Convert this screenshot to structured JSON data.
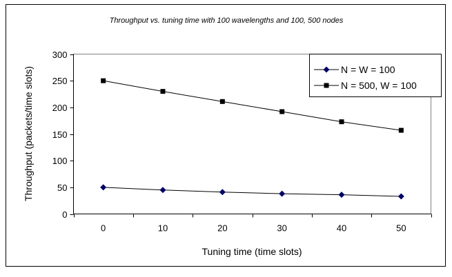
{
  "chart_data": {
    "type": "line",
    "title": "Throughput vs. tuning time with 100 wavelengths and 100, 500 nodes",
    "xlabel": "Tuning time (time slots)",
    "ylabel": "Throughput (packets/time slots)",
    "x": [
      0,
      10,
      20,
      30,
      40,
      50
    ],
    "ylim": [
      0,
      300
    ],
    "yticks": [
      0,
      50,
      100,
      150,
      200,
      250,
      300
    ],
    "grid": false,
    "legend_position": "top-right",
    "series": [
      {
        "name": "N = W = 100",
        "marker": "diamond",
        "color": "#000066",
        "values": [
          50,
          45,
          41,
          38,
          36,
          33
        ]
      },
      {
        "name": "N = 500, W = 100",
        "marker": "square",
        "color": "#000000",
        "values": [
          250,
          230,
          211,
          192,
          173,
          157
        ]
      }
    ]
  }
}
